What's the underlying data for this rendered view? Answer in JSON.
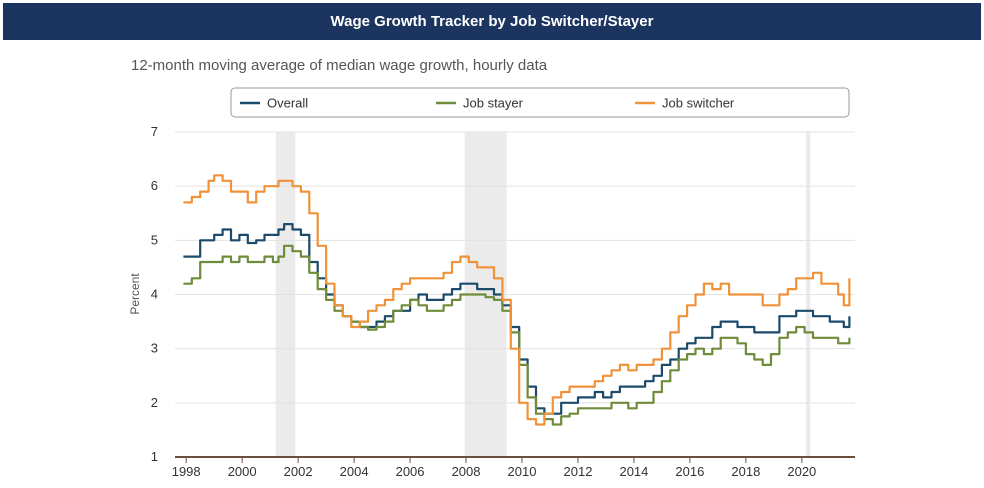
{
  "header": {
    "title": "Wage Growth Tracker by Job Switcher/Stayer"
  },
  "chart_data": {
    "type": "line",
    "subtitle": "12-month moving average of median wage growth, hourly data",
    "ylabel": "Percent",
    "xlabel": "",
    "xlim": [
      1997.6,
      2021.9
    ],
    "ylim": [
      1,
      7
    ],
    "y_ticks": [
      1,
      2,
      3,
      4,
      5,
      6,
      7
    ],
    "x_ticks": [
      1998,
      2000,
      2002,
      2004,
      2006,
      2008,
      2010,
      2012,
      2014,
      2016,
      2018,
      2020
    ],
    "grid": true,
    "legend_position": "top",
    "recessions": [
      [
        2001.2,
        2001.9
      ],
      [
        2007.95,
        2009.45
      ],
      [
        2020.15,
        2020.3
      ]
    ],
    "series": [
      {
        "name": "Overall",
        "color": "#1b4a6b",
        "x": [
          1997.9,
          1998.2,
          1998.5,
          1998.8,
          1999.0,
          1999.3,
          1999.6,
          1999.9,
          2000.2,
          2000.5,
          2000.8,
          2001.1,
          2001.3,
          2001.5,
          2001.8,
          2002.1,
          2002.4,
          2002.7,
          2003.0,
          2003.3,
          2003.6,
          2003.9,
          2004.2,
          2004.5,
          2004.8,
          2005.1,
          2005.4,
          2005.7,
          2006.0,
          2006.3,
          2006.6,
          2006.9,
          2007.2,
          2007.5,
          2007.8,
          2008.1,
          2008.4,
          2008.7,
          2009.0,
          2009.3,
          2009.6,
          2009.9,
          2010.2,
          2010.5,
          2010.8,
          2011.1,
          2011.4,
          2011.7,
          2012.0,
          2012.3,
          2012.6,
          2012.9,
          2013.2,
          2013.5,
          2013.8,
          2014.1,
          2014.4,
          2014.7,
          2015.0,
          2015.3,
          2015.6,
          2015.9,
          2016.2,
          2016.5,
          2016.8,
          2017.1,
          2017.4,
          2017.7,
          2018.0,
          2018.3,
          2018.6,
          2018.9,
          2019.2,
          2019.5,
          2019.8,
          2020.1,
          2020.4,
          2020.7,
          2021.0,
          2021.3,
          2021.5,
          2021.7
        ],
        "values": [
          4.7,
          4.7,
          5.0,
          5.0,
          5.1,
          5.2,
          5.0,
          5.1,
          4.95,
          5.0,
          5.1,
          5.1,
          5.2,
          5.3,
          5.2,
          5.1,
          4.6,
          4.3,
          4.0,
          3.8,
          3.6,
          3.5,
          3.4,
          3.4,
          3.5,
          3.6,
          3.7,
          3.7,
          3.9,
          4.0,
          3.9,
          3.9,
          4.0,
          4.1,
          4.2,
          4.2,
          4.1,
          4.1,
          4.0,
          3.8,
          3.4,
          2.8,
          2.3,
          1.9,
          1.8,
          1.8,
          2.0,
          2.0,
          2.1,
          2.1,
          2.2,
          2.1,
          2.2,
          2.3,
          2.3,
          2.3,
          2.4,
          2.5,
          2.7,
          2.8,
          3.0,
          3.1,
          3.2,
          3.2,
          3.4,
          3.5,
          3.5,
          3.4,
          3.4,
          3.3,
          3.3,
          3.3,
          3.6,
          3.6,
          3.7,
          3.7,
          3.6,
          3.6,
          3.5,
          3.5,
          3.4,
          3.6
        ]
      },
      {
        "name": "Job stayer",
        "color": "#6e8c3a",
        "x": [
          1997.9,
          1998.2,
          1998.5,
          1998.8,
          1999.0,
          1999.3,
          1999.6,
          1999.9,
          2000.2,
          2000.5,
          2000.8,
          2001.1,
          2001.3,
          2001.5,
          2001.8,
          2002.1,
          2002.4,
          2002.7,
          2003.0,
          2003.3,
          2003.6,
          2003.9,
          2004.2,
          2004.5,
          2004.8,
          2005.1,
          2005.4,
          2005.7,
          2006.0,
          2006.3,
          2006.6,
          2006.9,
          2007.2,
          2007.5,
          2007.8,
          2008.1,
          2008.4,
          2008.7,
          2009.0,
          2009.3,
          2009.6,
          2009.9,
          2010.2,
          2010.5,
          2010.8,
          2011.1,
          2011.4,
          2011.7,
          2012.0,
          2012.3,
          2012.6,
          2012.9,
          2013.2,
          2013.5,
          2013.8,
          2014.1,
          2014.4,
          2014.7,
          2015.0,
          2015.3,
          2015.6,
          2015.9,
          2016.2,
          2016.5,
          2016.8,
          2017.1,
          2017.4,
          2017.7,
          2018.0,
          2018.3,
          2018.6,
          2018.9,
          2019.2,
          2019.5,
          2019.8,
          2020.1,
          2020.4,
          2020.7,
          2021.0,
          2021.3,
          2021.5,
          2021.7
        ],
        "values": [
          4.2,
          4.3,
          4.6,
          4.6,
          4.6,
          4.7,
          4.6,
          4.7,
          4.6,
          4.6,
          4.7,
          4.6,
          4.7,
          4.9,
          4.8,
          4.7,
          4.4,
          4.1,
          3.9,
          3.7,
          3.6,
          3.5,
          3.4,
          3.35,
          3.4,
          3.5,
          3.7,
          3.8,
          3.9,
          3.8,
          3.7,
          3.7,
          3.8,
          3.9,
          4.0,
          4.0,
          4.0,
          3.95,
          3.9,
          3.7,
          3.3,
          2.7,
          2.1,
          1.8,
          1.7,
          1.6,
          1.75,
          1.8,
          1.9,
          1.9,
          1.9,
          1.9,
          2.0,
          2.0,
          1.9,
          2.0,
          2.0,
          2.2,
          2.4,
          2.6,
          2.8,
          2.9,
          3.0,
          2.9,
          3.0,
          3.2,
          3.2,
          3.1,
          2.9,
          2.8,
          2.7,
          2.9,
          3.2,
          3.3,
          3.4,
          3.3,
          3.2,
          3.2,
          3.2,
          3.1,
          3.1,
          3.2
        ]
      },
      {
        "name": "Job switcher",
        "color": "#f0923a",
        "x": [
          1997.9,
          1998.2,
          1998.5,
          1998.8,
          1999.0,
          1999.3,
          1999.6,
          1999.9,
          2000.2,
          2000.5,
          2000.8,
          2001.1,
          2001.3,
          2001.5,
          2001.8,
          2002.1,
          2002.4,
          2002.7,
          2003.0,
          2003.3,
          2003.6,
          2003.9,
          2004.2,
          2004.5,
          2004.8,
          2005.1,
          2005.4,
          2005.7,
          2006.0,
          2006.3,
          2006.6,
          2006.9,
          2007.2,
          2007.5,
          2007.8,
          2008.1,
          2008.4,
          2008.7,
          2009.0,
          2009.3,
          2009.6,
          2009.9,
          2010.2,
          2010.5,
          2010.8,
          2011.1,
          2011.4,
          2011.7,
          2012.0,
          2012.3,
          2012.6,
          2012.9,
          2013.2,
          2013.5,
          2013.8,
          2014.1,
          2014.4,
          2014.7,
          2015.0,
          2015.3,
          2015.6,
          2015.9,
          2016.2,
          2016.5,
          2016.8,
          2017.1,
          2017.4,
          2017.7,
          2018.0,
          2018.3,
          2018.6,
          2018.9,
          2019.2,
          2019.5,
          2019.8,
          2020.1,
          2020.4,
          2020.7,
          2021.0,
          2021.3,
          2021.5,
          2021.7
        ],
        "values": [
          5.7,
          5.8,
          5.9,
          6.1,
          6.2,
          6.1,
          5.9,
          5.9,
          5.7,
          5.9,
          6.0,
          6.0,
          6.1,
          6.1,
          6.0,
          5.9,
          5.5,
          4.9,
          4.2,
          3.8,
          3.6,
          3.4,
          3.5,
          3.7,
          3.8,
          3.9,
          4.1,
          4.2,
          4.3,
          4.3,
          4.3,
          4.3,
          4.4,
          4.6,
          4.7,
          4.6,
          4.5,
          4.5,
          4.3,
          3.9,
          3.0,
          2.0,
          1.7,
          1.6,
          1.8,
          2.1,
          2.2,
          2.3,
          2.3,
          2.3,
          2.4,
          2.5,
          2.6,
          2.7,
          2.6,
          2.7,
          2.7,
          2.8,
          3.0,
          3.3,
          3.6,
          3.8,
          4.0,
          4.2,
          4.1,
          4.2,
          4.0,
          4.0,
          4.0,
          4.0,
          3.8,
          3.8,
          4.0,
          4.1,
          4.3,
          4.3,
          4.4,
          4.2,
          4.2,
          4.0,
          3.8,
          4.3
        ]
      }
    ]
  }
}
